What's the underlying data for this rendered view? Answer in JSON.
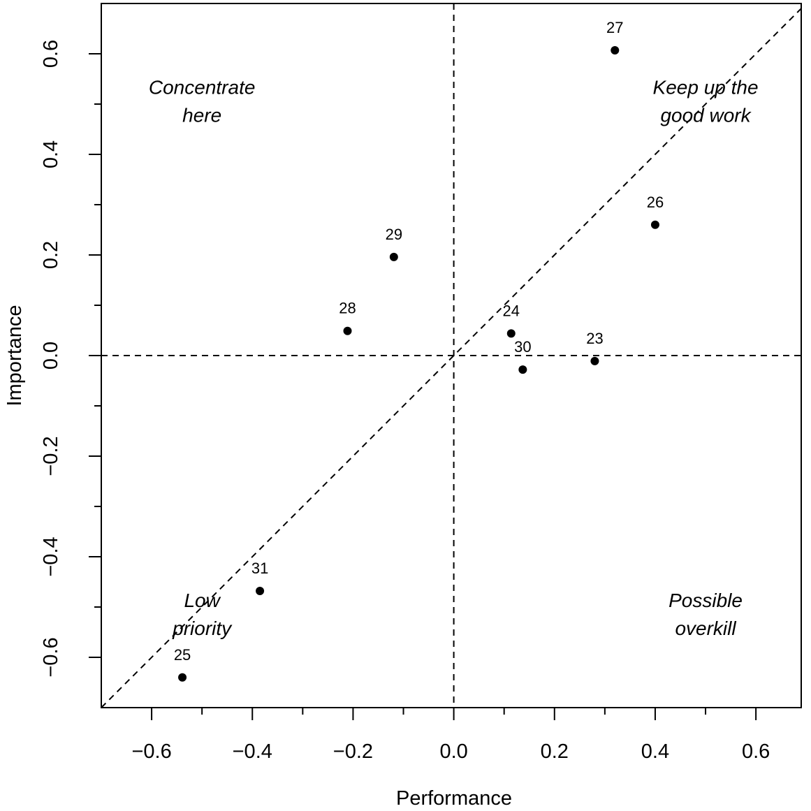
{
  "chart_data": {
    "type": "scatter",
    "title": "",
    "xlabel": "Performance",
    "ylabel": "Importance",
    "xlim": [
      -0.7,
      0.69
    ],
    "ylim": [
      -0.7,
      0.7
    ],
    "xticks": [
      -0.6,
      -0.4,
      -0.2,
      0.0,
      0.2,
      0.4,
      0.6
    ],
    "yticks": [
      -0.6,
      -0.4,
      -0.2,
      0.0,
      0.2,
      0.4,
      0.6
    ],
    "xtick_labels": [
      "−0.6",
      "−0.4",
      "−0.2",
      "0.0",
      "0.2",
      "0.4",
      "0.6"
    ],
    "ytick_labels": [
      "−0.6",
      "−0.4",
      "−0.2",
      "0.0",
      "0.2",
      "0.4",
      "0.6"
    ],
    "minor_tick_step": 0.1,
    "grid": false,
    "reference_lines": [
      "x = 0 (dashed)",
      "y = 0 (dashed)",
      "y = x (dashed)"
    ],
    "points": [
      {
        "label": "23",
        "x": 0.28,
        "y": -0.011
      },
      {
        "label": "24",
        "x": 0.114,
        "y": 0.044
      },
      {
        "label": "25",
        "x": -0.539,
        "y": -0.64
      },
      {
        "label": "26",
        "x": 0.4,
        "y": 0.26
      },
      {
        "label": "27",
        "x": 0.32,
        "y": 0.607
      },
      {
        "label": "28",
        "x": -0.211,
        "y": 0.049
      },
      {
        "label": "29",
        "x": -0.119,
        "y": 0.196
      },
      {
        "label": "30",
        "x": 0.137,
        "y": -0.028
      },
      {
        "label": "31",
        "x": -0.385,
        "y": -0.468
      }
    ],
    "annotations": [
      {
        "lines": [
          "Concentrate",
          "here"
        ],
        "x": -0.5,
        "y": 0.52
      },
      {
        "lines": [
          "Keep up the",
          "good work"
        ],
        "x": 0.5,
        "y": 0.52
      },
      {
        "lines": [
          "Low",
          "priority"
        ],
        "x": -0.5,
        "y": -0.5
      },
      {
        "lines": [
          "Possible",
          "overkill"
        ],
        "x": 0.5,
        "y": -0.5
      }
    ],
    "point_color": "#000000"
  }
}
